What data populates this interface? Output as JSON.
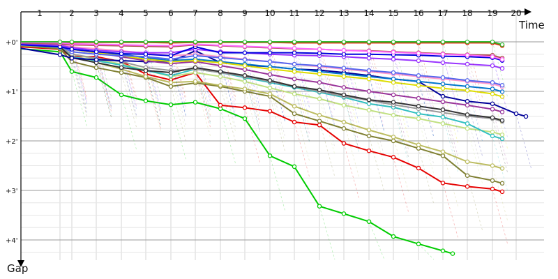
{
  "chart_data": {
    "type": "line",
    "x_axis": {
      "label": "Time",
      "ticks": [
        "1",
        "2",
        "3",
        "4",
        "5",
        "6",
        "7",
        "8",
        "9",
        "10",
        "11",
        "12",
        "13",
        "14",
        "15",
        "16",
        "17",
        "18",
        "19",
        "20"
      ]
    },
    "y_axis": {
      "label": "Gap",
      "ticks": [
        "+0'",
        "+1'",
        "+2'",
        "+3'",
        "+4'"
      ],
      "range_minutes": [
        -0.05,
        4.7
      ],
      "inverted": true
    },
    "grid": true,
    "laps": [
      0,
      1,
      2,
      3,
      4,
      5,
      6,
      7,
      8,
      9,
      10,
      11,
      12,
      13,
      14,
      15,
      16,
      17,
      18,
      19,
      20
    ],
    "series": [
      {
        "color": "#00cc00",
        "values": [
          0.14,
          0.2,
          0.6,
          0.72,
          1.07,
          1.19,
          1.27,
          1.22,
          1.35,
          1.55,
          2.3,
          2.52,
          3.32,
          3.47,
          3.63,
          3.93,
          4.08,
          4.22
        ]
      },
      {
        "color": "#e60000",
        "values": [
          0.1,
          0.15,
          0.3,
          0.3,
          0.4,
          0.65,
          0.77,
          0.62,
          1.28,
          1.33,
          1.4,
          1.62,
          1.68,
          2.05,
          2.2,
          2.33,
          2.55,
          2.85,
          2.92,
          2.97
        ]
      },
      {
        "color": "#808033",
        "values": [
          0.08,
          0.14,
          0.4,
          0.52,
          0.62,
          0.72,
          0.9,
          0.83,
          0.9,
          1.0,
          1.1,
          1.45,
          1.6,
          1.75,
          1.9,
          2.0,
          2.15,
          2.3,
          2.7,
          2.8
        ]
      },
      {
        "color": "#bcbc60",
        "values": [
          0.05,
          0.12,
          0.3,
          0.42,
          0.55,
          0.7,
          0.82,
          0.8,
          0.88,
          0.95,
          1.05,
          1.3,
          1.48,
          1.62,
          1.78,
          1.92,
          2.08,
          2.22,
          2.42,
          2.5
        ]
      },
      {
        "color": "#c0e080",
        "values": [
          0.07,
          0.1,
          0.25,
          0.35,
          0.45,
          0.57,
          0.7,
          0.62,
          0.7,
          0.8,
          0.93,
          1.05,
          1.15,
          1.28,
          1.38,
          1.48,
          1.55,
          1.65,
          1.75,
          1.82
        ]
      },
      {
        "color": "#30c0c0",
        "values": [
          0.06,
          0.11,
          0.3,
          0.38,
          0.47,
          0.58,
          0.68,
          0.55,
          0.62,
          0.72,
          0.82,
          0.92,
          1.02,
          1.12,
          1.25,
          1.32,
          1.45,
          1.52,
          1.65,
          1.9
        ]
      },
      {
        "color": "#999999",
        "values": [
          0.06,
          0.1,
          0.25,
          0.33,
          0.4,
          0.52,
          0.58,
          0.55,
          0.62,
          0.7,
          0.8,
          0.9,
          1.0,
          1.1,
          1.18,
          1.27,
          1.35,
          1.43,
          1.5,
          1.55
        ]
      },
      {
        "color": "#333333",
        "values": [
          0.05,
          0.1,
          0.32,
          0.42,
          0.52,
          0.58,
          0.62,
          0.52,
          0.6,
          0.68,
          0.78,
          0.9,
          0.97,
          1.07,
          1.17,
          1.22,
          1.3,
          1.37,
          1.47,
          1.53
        ]
      },
      {
        "color": "#000099",
        "values": [
          0.13,
          0.26,
          0.33,
          0.36,
          0.38,
          0.4,
          0.4,
          0.18,
          0.42,
          0.47,
          0.5,
          0.55,
          0.57,
          0.62,
          0.68,
          0.75,
          0.8,
          1.1,
          1.2,
          1.25,
          1.45
        ]
      },
      {
        "color": "#993399",
        "values": [
          0.05,
          0.08,
          0.15,
          0.22,
          0.3,
          0.38,
          0.44,
          0.4,
          0.48,
          0.56,
          0.66,
          0.75,
          0.82,
          0.92,
          1.0,
          1.07,
          1.14,
          1.21,
          1.28,
          1.36
        ]
      },
      {
        "color": "#0077cc",
        "values": [
          0.05,
          0.08,
          0.15,
          0.2,
          0.25,
          0.32,
          0.38,
          0.35,
          0.4,
          0.45,
          0.5,
          0.55,
          0.6,
          0.65,
          0.7,
          0.75,
          0.8,
          0.85,
          0.9,
          0.95
        ]
      },
      {
        "color": "#dddd00",
        "values": [
          0.05,
          0.08,
          0.15,
          0.22,
          0.28,
          0.35,
          0.4,
          0.38,
          0.42,
          0.48,
          0.55,
          0.6,
          0.65,
          0.7,
          0.75,
          0.82,
          0.88,
          0.94,
          0.98,
          1.05
        ]
      },
      {
        "color": "#ff99cc",
        "values": [
          0.03,
          0.05,
          0.1,
          0.14,
          0.18,
          0.23,
          0.28,
          0.25,
          0.3,
          0.35,
          0.4,
          0.45,
          0.5,
          0.55,
          0.6,
          0.65,
          0.7,
          0.75,
          0.8,
          0.85
        ]
      },
      {
        "color": "#5566ee",
        "values": [
          0.06,
          0.09,
          0.2,
          0.25,
          0.28,
          0.3,
          0.35,
          0.28,
          0.32,
          0.36,
          0.4,
          0.45,
          0.48,
          0.53,
          0.58,
          0.62,
          0.68,
          0.72,
          0.78,
          0.82
        ]
      },
      {
        "color": "#9933ff",
        "values": [
          0.04,
          0.07,
          0.12,
          0.17,
          0.2,
          0.22,
          0.22,
          0.15,
          0.2,
          0.22,
          0.25,
          0.27,
          0.28,
          0.3,
          0.33,
          0.35,
          0.38,
          0.42,
          0.45,
          0.48
        ]
      },
      {
        "color": "#0000dd",
        "values": [
          0.06,
          0.1,
          0.15,
          0.2,
          0.24,
          0.25,
          0.28,
          0.1,
          0.22,
          0.22,
          0.22,
          0.22,
          0.23,
          0.25,
          0.25,
          0.26,
          0.27,
          0.29,
          0.3,
          0.32
        ]
      },
      {
        "color": "#b05050",
        "values": [
          0.02,
          0.04,
          0.06,
          0.07,
          0.08,
          0.09,
          0.1,
          0.06,
          0.08,
          0.1,
          0.12,
          0.14,
          0.15,
          0.17,
          0.18,
          0.2,
          0.22,
          0.24,
          0.26,
          0.27
        ]
      },
      {
        "color": "#ff66ff",
        "values": [
          0.01,
          0.02,
          0.04,
          0.05,
          0.06,
          0.07,
          0.08,
          0.05,
          0.07,
          0.09,
          0.11,
          0.13,
          0.15,
          0.17,
          0.19,
          0.21,
          0.23,
          0.25,
          0.27,
          0.3
        ]
      },
      {
        "color": "#dd2200",
        "values": [
          0.0,
          0.0,
          0.01,
          0.01,
          0.01,
          0.01,
          0.02,
          0.01,
          0.01,
          0.01,
          0.01,
          0.02,
          0.02,
          0.02,
          0.02,
          0.02,
          0.02,
          0.02,
          0.02,
          0.02
        ]
      },
      {
        "color": "#33bb33",
        "values": [
          0.0,
          0.0,
          0.0,
          0.0,
          0.0,
          0.0,
          0.0,
          0.0,
          0.0,
          0.0,
          0.0,
          0.0,
          0.0,
          0.0,
          0.0,
          0.0,
          0.0,
          0.0,
          0.0,
          0.0
        ]
      }
    ]
  }
}
